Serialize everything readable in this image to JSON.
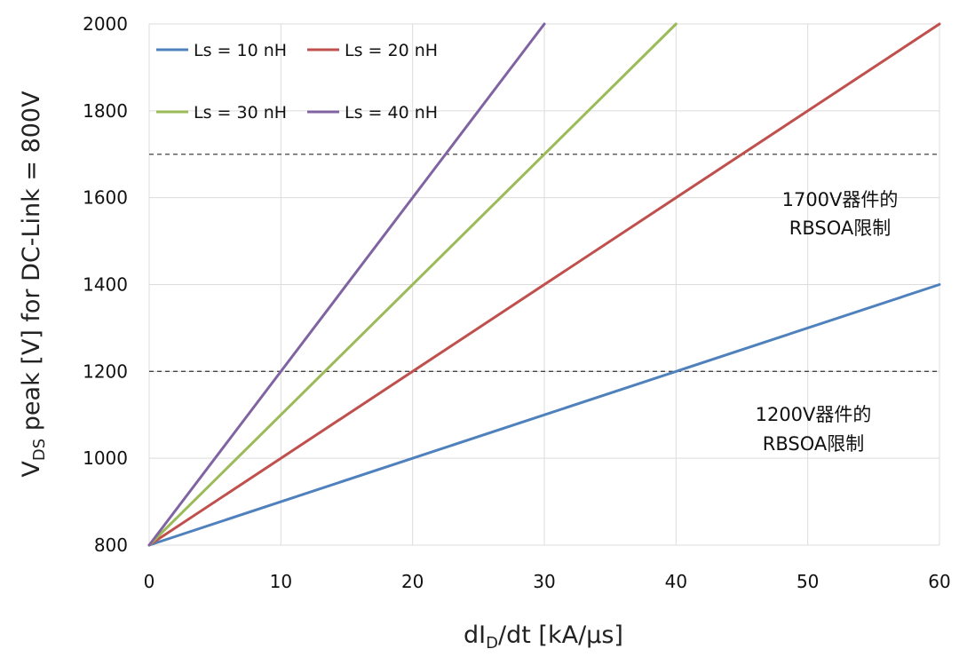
{
  "chart_data": {
    "type": "line",
    "title": "",
    "xlabel_parts": {
      "main": "dI",
      "sub": "D",
      "rest": "/dt [kA/μs]"
    },
    "ylabel_parts": {
      "main": "V",
      "sub": "DS",
      "rest": " peak [V] for DC-Link = 800V"
    },
    "xlim": [
      0,
      60
    ],
    "ylim": [
      800,
      2000
    ],
    "x_ticks": [
      "0",
      "10",
      "20",
      "30",
      "40",
      "50",
      "60"
    ],
    "y_ticks": [
      "800",
      "1000",
      "1200",
      "1400",
      "1600",
      "1800",
      "2000"
    ],
    "grid": true,
    "legend_position": "top-left",
    "series": [
      {
        "name": "Ls = 10 nH",
        "color": "#4f81bd",
        "x": [
          0,
          60
        ],
        "y": [
          800,
          1400
        ]
      },
      {
        "name": "Ls = 20 nH",
        "color": "#c0504d",
        "x": [
          0,
          60
        ],
        "y": [
          800,
          2000
        ]
      },
      {
        "name": "Ls = 30 nH",
        "color": "#9bbb59",
        "x": [
          0,
          40
        ],
        "y": [
          800,
          2000
        ]
      },
      {
        "name": "Ls = 40 nH",
        "color": "#8064a2",
        "x": [
          0,
          30
        ],
        "y": [
          800,
          2000
        ]
      }
    ],
    "reference_lines": [
      {
        "y": 1700,
        "label_line1": "1700V器件的",
        "label_line2": "RBSOA限制"
      },
      {
        "y": 1200,
        "label_line1": "1200V器件的",
        "label_line2": "RBSOA限制"
      }
    ]
  }
}
